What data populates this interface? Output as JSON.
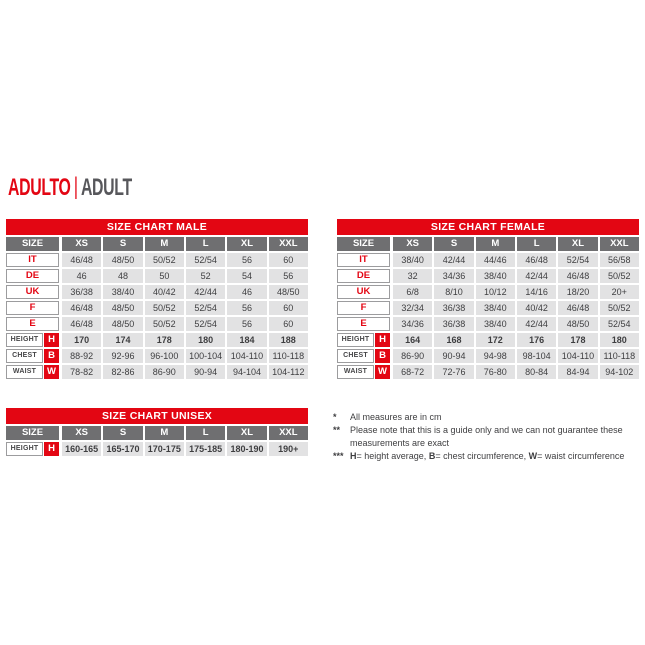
{
  "title": {
    "primary": "ADULTO",
    "separator": "|",
    "secondary": "ADULT"
  },
  "colors": {
    "brand_red": "#e30613",
    "column_header_gray": "#6f6f71",
    "cell_background_gray": "#e2e2e3",
    "text_dark": "#3e3e40",
    "title_secondary_gray": "#57575b",
    "label_border_gray": "#9c9c9e"
  },
  "chart_data": [
    {
      "type": "table",
      "title": "SIZE CHART MALE",
      "size_label": "SIZE",
      "columns": [
        "XS",
        "S",
        "M",
        "L",
        "XL",
        "XXL"
      ],
      "size_rows": [
        {
          "label": "IT",
          "values": [
            "46/48",
            "48/50",
            "50/52",
            "52/54",
            "56",
            "60"
          ]
        },
        {
          "label": "DE",
          "values": [
            "46",
            "48",
            "50",
            "52",
            "54",
            "56"
          ]
        },
        {
          "label": "UK",
          "values": [
            "36/38",
            "38/40",
            "40/42",
            "42/44",
            "46",
            "48/50"
          ]
        },
        {
          "label": "F",
          "values": [
            "46/48",
            "48/50",
            "50/52",
            "52/54",
            "56",
            "60"
          ]
        },
        {
          "label": "E",
          "values": [
            "46/48",
            "48/50",
            "50/52",
            "52/54",
            "56",
            "60"
          ]
        }
      ],
      "measure_rows": [
        {
          "label": "HEIGHT",
          "badge": "H",
          "bold": true,
          "values": [
            "170",
            "174",
            "178",
            "180",
            "184",
            "188"
          ]
        },
        {
          "label": "CHEST",
          "badge": "B",
          "bold": false,
          "values": [
            "88-92",
            "92-96",
            "96-100",
            "100-104",
            "104-110",
            "110-118"
          ]
        },
        {
          "label": "WAIST",
          "badge": "W",
          "bold": false,
          "values": [
            "78-82",
            "82-86",
            "86-90",
            "90-94",
            "94-104",
            "104-112"
          ]
        }
      ]
    },
    {
      "type": "table",
      "title": "SIZE CHART FEMALE",
      "size_label": "SIZE",
      "columns": [
        "XS",
        "S",
        "M",
        "L",
        "XL",
        "XXL"
      ],
      "size_rows": [
        {
          "label": "IT",
          "values": [
            "38/40",
            "42/44",
            "44/46",
            "46/48",
            "52/54",
            "56/58"
          ]
        },
        {
          "label": "DE",
          "values": [
            "32",
            "34/36",
            "38/40",
            "42/44",
            "46/48",
            "50/52"
          ]
        },
        {
          "label": "UK",
          "values": [
            "6/8",
            "8/10",
            "10/12",
            "14/16",
            "18/20",
            "20+"
          ]
        },
        {
          "label": "F",
          "values": [
            "32/34",
            "36/38",
            "38/40",
            "40/42",
            "46/48",
            "50/52"
          ]
        },
        {
          "label": "E",
          "values": [
            "34/36",
            "36/38",
            "38/40",
            "42/44",
            "48/50",
            "52/54"
          ]
        }
      ],
      "measure_rows": [
        {
          "label": "HEIGHT",
          "badge": "H",
          "bold": true,
          "values": [
            "164",
            "168",
            "172",
            "176",
            "178",
            "180"
          ]
        },
        {
          "label": "CHEST",
          "badge": "B",
          "bold": false,
          "values": [
            "86-90",
            "90-94",
            "94-98",
            "98-104",
            "104-110",
            "110-118"
          ]
        },
        {
          "label": "WAIST",
          "badge": "W",
          "bold": false,
          "values": [
            "68-72",
            "72-76",
            "76-80",
            "80-84",
            "84-94",
            "94-102"
          ]
        }
      ]
    },
    {
      "type": "table",
      "title": "SIZE CHART UNISEX",
      "size_label": "SIZE",
      "columns": [
        "XS",
        "S",
        "M",
        "L",
        "XL",
        "XXL"
      ],
      "size_rows": [],
      "measure_rows": [
        {
          "label": "HEIGHT",
          "badge": "H",
          "bold": true,
          "values": [
            "160-165",
            "165-170",
            "170-175",
            "175-185",
            "180-190",
            "190+"
          ]
        }
      ]
    }
  ],
  "footnotes": [
    {
      "marker": "*",
      "segments": [
        {
          "text": "All measures are in cm",
          "bold": false
        }
      ]
    },
    {
      "marker": "**",
      "segments": [
        {
          "text": "Please note that this is a guide only and we can not guarantee these measurements are exact",
          "bold": false
        }
      ]
    },
    {
      "marker": "***",
      "segments": [
        {
          "text": "H",
          "bold": true
        },
        {
          "text": "= height average, ",
          "bold": false
        },
        {
          "text": "B",
          "bold": true
        },
        {
          "text": "= chest circumference, ",
          "bold": false
        },
        {
          "text": "W",
          "bold": true
        },
        {
          "text": "= waist circumference",
          "bold": false
        }
      ]
    }
  ]
}
